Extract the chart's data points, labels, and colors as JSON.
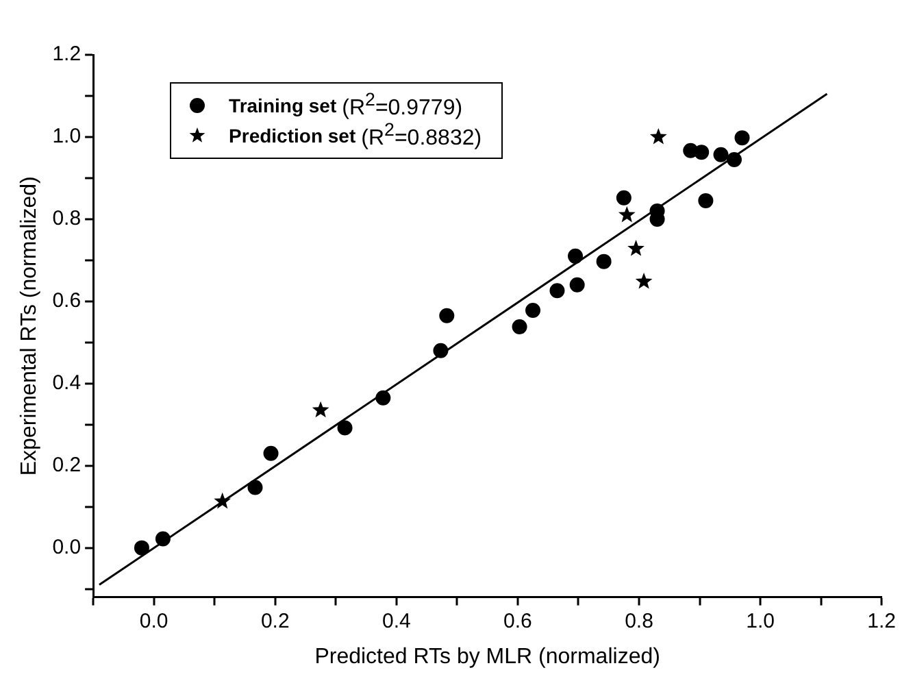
{
  "chart_data": {
    "type": "scatter",
    "xlabel": "Predicted RTs by MLR (normalized)",
    "ylabel": "Experimental RTs (normalized)",
    "xlim": [
      -0.1,
      1.2
    ],
    "ylim": [
      -0.12,
      1.2
    ],
    "xticks": [
      {
        "value": -0.1,
        "label": null
      },
      {
        "value": 0,
        "label": "0.0"
      },
      {
        "value": 0.1,
        "label": null
      },
      0.2,
      {
        "value": 0.3,
        "label": null
      },
      0.4,
      {
        "value": 0.5,
        "label": null
      },
      0.6,
      {
        "value": 0.7,
        "label": null
      },
      0.8,
      {
        "value": 0.9,
        "label": null
      },
      {
        "value": 1,
        "label": "1.0"
      },
      {
        "value": 1.1,
        "label": null
      },
      1.2
    ],
    "yticks": [
      {
        "value": -0.1,
        "label": null
      },
      {
        "value": 0,
        "label": "0.0"
      },
      {
        "value": 0.1,
        "label": null
      },
      0.2,
      {
        "value": 0.3,
        "label": null
      },
      0.4,
      {
        "value": 0.5,
        "label": null
      },
      0.6,
      {
        "value": 0.7,
        "label": null
      },
      0.8,
      {
        "value": 0.9,
        "label": null
      },
      {
        "value": 1,
        "label": "1.0"
      },
      {
        "value": 1.1,
        "label": null
      },
      1.2
    ],
    "grid": false,
    "legend": "top left",
    "series": [
      {
        "name": "Training set (R$^{2}$=0.9779)",
        "color": "#000000",
        "marker": "circle",
        "x": [
          -0.02,
          0.015,
          0.167,
          0.193,
          0.315,
          0.378,
          0.473,
          0.483,
          0.603,
          0.625,
          0.665,
          0.695,
          0.698,
          0.742,
          0.775,
          0.83,
          0.83,
          0.885,
          0.903,
          0.91,
          0.935,
          0.957,
          0.97
        ],
        "values": [
          0.0,
          0.022,
          0.147,
          0.23,
          0.292,
          0.365,
          0.48,
          0.565,
          0.538,
          0.578,
          0.626,
          0.71,
          0.64,
          0.697,
          0.852,
          0.82,
          0.8,
          0.967,
          0.963,
          0.845,
          0.957,
          0.945,
          0.998
        ]
      },
      {
        "name": "Prediction set (R$^{2}$=0.8832)",
        "color": "#000000",
        "marker": "star",
        "x": [
          0.113,
          0.275,
          0.78,
          0.795,
          0.808,
          0.832
        ],
        "values": [
          0.113,
          0.335,
          0.81,
          0.728,
          0.648,
          1.0
        ]
      },
      {
        "type": "line",
        "color": "#000000",
        "marker": "none",
        "x": [
          -0.09,
          1.11
        ],
        "values": [
          -0.09,
          1.105
        ]
      }
    ]
  }
}
